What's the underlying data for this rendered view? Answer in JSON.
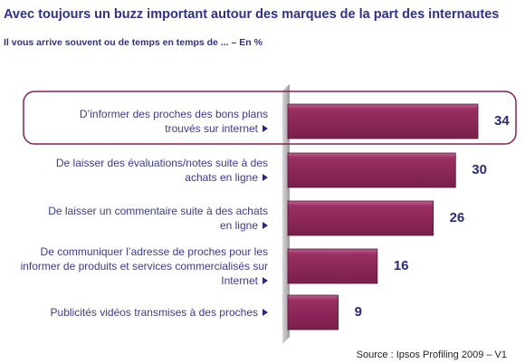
{
  "chart_data": {
    "type": "barh",
    "title": "Avec toujours un buzz important autour des marques de la part des internautes",
    "subtitle": "Il vous arrive souvent ou de temps en temps de ... – En %",
    "categories": [
      "D’informer des proches des bons plans\ntrouvés sur internet",
      "De laisser des évaluations/notes suite à des\nachats en ligne",
      "De laisser un commentaire suite à des achats\nen ligne",
      "De communiquer l’adresse de proches pour les\ninformer de produits et services commercialisés sur\nInternet",
      "Publicités vidéos transmises à des proches"
    ],
    "values": [
      34,
      30,
      26,
      16,
      9
    ],
    "color": "#9a2f62",
    "source": "Source : Ipsos Profiling 2009 – V1"
  }
}
